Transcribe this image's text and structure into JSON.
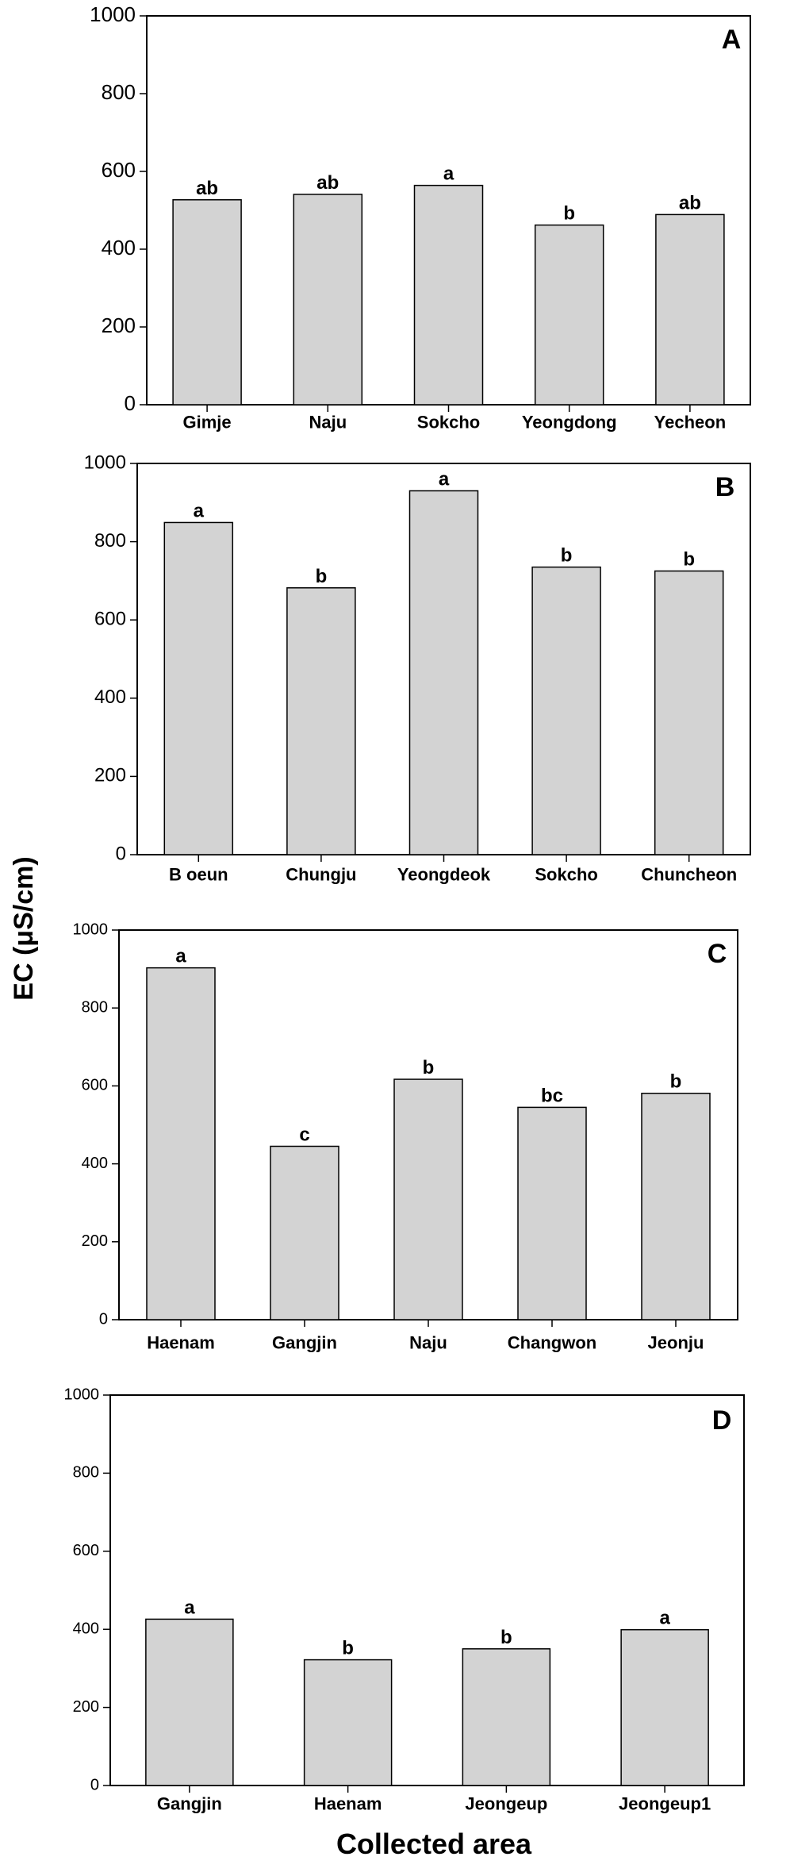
{
  "ylabel": "EC (μS/cm)",
  "xlabel": "Collected area",
  "chart_data": [
    {
      "type": "bar",
      "panel": "A",
      "ylim": [
        0,
        1000
      ],
      "yticks": [
        0,
        200,
        400,
        600,
        800,
        1000
      ],
      "categories": [
        "Gimje",
        "Naju",
        "Sokcho",
        "Yeongdong",
        "Yecheon"
      ],
      "values": [
        527,
        541,
        564,
        462,
        489
      ],
      "labels": [
        "ab",
        "ab",
        "a",
        "b",
        "ab"
      ],
      "grid": false
    },
    {
      "type": "bar",
      "panel": "B",
      "ylim": [
        0,
        1000
      ],
      "yticks": [
        0,
        200,
        400,
        600,
        800,
        1000
      ],
      "categories": [
        "B oeun",
        "Chungju",
        "Yeongdeok",
        "Sokcho",
        "Chuncheon"
      ],
      "values": [
        849,
        682,
        930,
        735,
        725
      ],
      "labels": [
        "a",
        "b",
        "a",
        "b",
        "b"
      ],
      "grid": false
    },
    {
      "type": "bar",
      "panel": "C",
      "ylim": [
        0,
        1000
      ],
      "yticks": [
        0,
        200,
        400,
        600,
        800,
        1000
      ],
      "categories": [
        "Haenam",
        "Gangjin",
        "Naju",
        "Changwon",
        "Jeonju"
      ],
      "values": [
        903,
        445,
        617,
        545,
        581
      ],
      "labels": [
        "a",
        "c",
        "b",
        "bc",
        "b"
      ],
      "grid": false
    },
    {
      "type": "bar",
      "panel": "D",
      "ylim": [
        0,
        1000
      ],
      "yticks": [
        0,
        200,
        400,
        600,
        800,
        1000
      ],
      "categories": [
        "Gangjin",
        "Haenam",
        "Jeongeup",
        "Jeongeup1"
      ],
      "values": [
        426,
        322,
        350,
        399
      ],
      "labels": [
        "a",
        "b",
        "b",
        "a"
      ],
      "grid": false
    }
  ]
}
